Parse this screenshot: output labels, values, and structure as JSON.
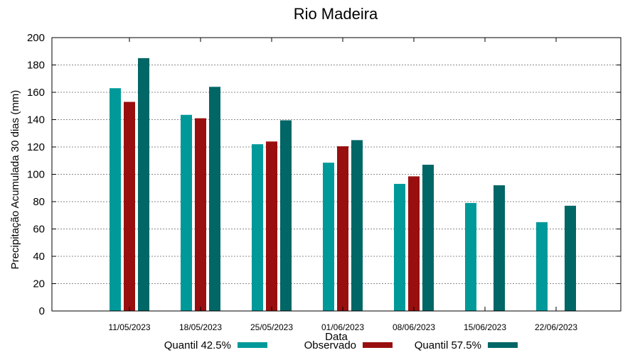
{
  "chart_data": {
    "type": "bar",
    "title": "Rio Madeira",
    "xlabel": "Data",
    "ylabel": "Precipitação Acumulada 30 dias (mm)",
    "ylim": [
      0,
      200
    ],
    "yticks": [
      0,
      20,
      40,
      60,
      80,
      100,
      120,
      140,
      160,
      180,
      200
    ],
    "grid": true,
    "legend_position": "bottom",
    "categories": [
      "11/05/2023",
      "18/05/2023",
      "25/05/2023",
      "01/06/2023",
      "08/06/2023",
      "15/06/2023",
      "22/06/2023"
    ],
    "series": [
      {
        "name": "Quantil 42.5%",
        "color": "#009999",
        "values": [
          163,
          143.5,
          122,
          108.5,
          93,
          79,
          65
        ]
      },
      {
        "name": "Observado",
        "color": "#990f0f",
        "values": [
          153,
          141,
          124,
          120.5,
          98.5,
          null,
          null
        ]
      },
      {
        "name": "Quantil 57.5%",
        "color": "#006666",
        "values": [
          185,
          164,
          139.5,
          125,
          107,
          92,
          77
        ]
      }
    ]
  }
}
